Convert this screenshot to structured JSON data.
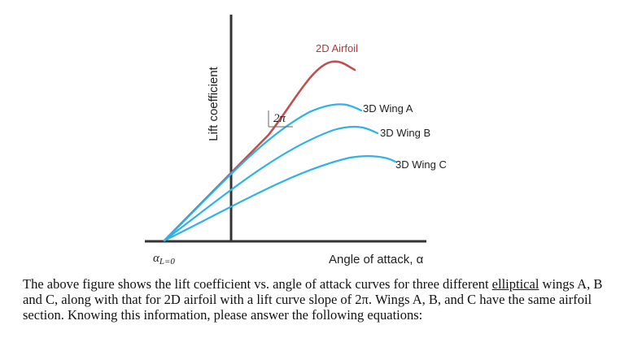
{
  "figure": {
    "y_axis_label": "Lift coefficient",
    "x_axis_label": "Angle of attack, α",
    "zero_lift_label": "α",
    "zero_lift_subscript": "L=0",
    "slope_label": "2π",
    "curves": [
      {
        "name": "2D Airfoil",
        "color": "#c0504d"
      },
      {
        "name": "3D Wing A",
        "color": "#2eb2e8"
      },
      {
        "name": "3D Wing B",
        "color": "#2eb2e8"
      },
      {
        "name": "3D Wing C",
        "color": "#2eb2e8"
      }
    ],
    "axis_color": "#333333"
  },
  "caption": {
    "part1": "The above figure shows the lift coefficient vs. angle of attack curves for three different ",
    "underlined": "elliptical",
    "part2": " wings A, B and C, along with that for 2D airfoil with a lift curve slope of 2π. Wings A, B, and C have the same airfoil section. Knowing this information, please answer the following equations:"
  }
}
